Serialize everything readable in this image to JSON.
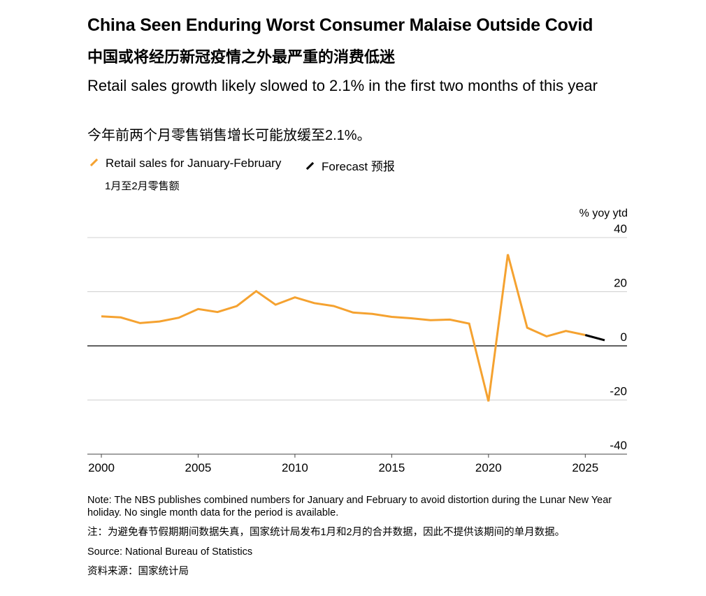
{
  "header": {
    "title": "China Seen Enduring Worst Consumer Malaise Outside Covid",
    "title_zh": "中国或将经历新冠疫情之外最严重的消费低迷",
    "subtitle": "Retail sales growth likely slowed to 2.1% in the first two months of this year",
    "subtitle_zh": "今年前两个月零售销售增长可能放缓至2.1%。"
  },
  "legend": {
    "retail_label": "Retail sales for January-February",
    "retail_label_zh": "1月至2月零售额",
    "forecast_label": "Forecast  预报"
  },
  "footer": {
    "note": "Note: The NBS publishes combined numbers for January and February to avoid distortion during the Lunar New Year holiday. No single month data for the period is available.",
    "note_zh": "注：为避免春节假期期间数据失真，国家统计局发布1月和2月的合并数据，因此不提供该期间的单月数据。",
    "source": "Source: National Bureau of Statistics",
    "source_zh": "资料来源：国家统计局"
  },
  "colors": {
    "retail": "#f5a230",
    "forecast": "#000000",
    "grid": "#d0d0d0",
    "zero_line": "#000000"
  },
  "chart_data": {
    "type": "line",
    "ylabel": "% yoy ytd",
    "xlim": [
      2000,
      2026
    ],
    "ylim": [
      -40,
      40
    ],
    "x_ticks": [
      2000,
      2005,
      2010,
      2015,
      2020,
      2025
    ],
    "y_ticks": [
      40,
      20,
      0,
      -20,
      -40
    ],
    "grid": true,
    "legend_position": "top-left",
    "series": [
      {
        "name": "Retail sales for January-February",
        "color": "#f5a230",
        "x": [
          2000,
          2001,
          2002,
          2003,
          2004,
          2005,
          2006,
          2007,
          2008,
          2009,
          2010,
          2011,
          2012,
          2013,
          2014,
          2015,
          2016,
          2017,
          2018,
          2019,
          2020,
          2021,
          2022,
          2023,
          2024,
          2025
        ],
        "y": [
          10.9,
          10.5,
          8.4,
          9.0,
          10.4,
          13.6,
          12.5,
          14.7,
          20.2,
          15.2,
          17.9,
          15.8,
          14.7,
          12.3,
          11.8,
          10.7,
          10.2,
          9.5,
          9.7,
          8.2,
          -20.5,
          33.8,
          6.7,
          3.5,
          5.5,
          4.0
        ]
      },
      {
        "name": "Forecast",
        "color": "#000000",
        "x": [
          2025,
          2026
        ],
        "y": [
          4.0,
          2.1
        ]
      }
    ]
  }
}
